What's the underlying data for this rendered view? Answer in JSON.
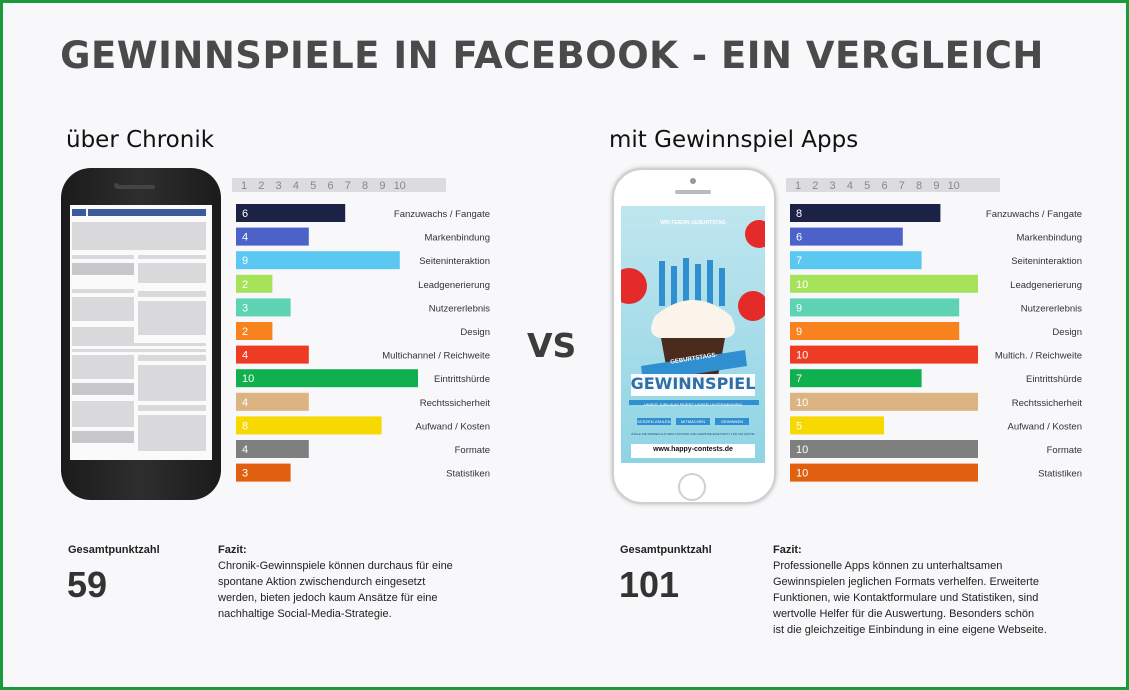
{
  "title": "GEWINNSPIELE IN FACEBOOK - EIN VERGLEICH",
  "vs": "VS",
  "colors": {
    "frame": "#1a9a3a",
    "scale_bg": "#dcdcde",
    "scale_text": "#888888",
    "category_colors": [
      "#1c2246",
      "#4c62c8",
      "#5bc8f2",
      "#a6e35a",
      "#5dd3b3",
      "#f7821e",
      "#ee3b24",
      "#10b04e",
      "#dbb482",
      "#f7d800",
      "#7f7f7f",
      "#e06010"
    ]
  },
  "scale_ticks": [
    "1",
    "2",
    "3",
    "4",
    "5",
    "6",
    "7",
    "8",
    "9",
    "10"
  ],
  "left": {
    "heading": "über Chronik",
    "total_label": "Gesamtpunktzahl",
    "total_value": "59",
    "fazit_label": "Fazit:",
    "fazit_lines": [
      "Chronik-Gewinnspiele  können durchaus für eine",
      "spontane Aktion zwischendurch eingesetzt",
      "werden,  bieten jedoch kaum Ansätze für eine",
      "nachhaltige Social-Media-Strategie."
    ]
  },
  "right": {
    "heading": "mit Gewinnspiel Apps",
    "total_label": "Gesamtpunktzahl",
    "total_value": "101",
    "fazit_label": "Fazit:",
    "fazit_lines": [
      "Professionelle  Apps können zu unterhaltsamen",
      "Gewinnspielen  jeglichen Formats verhelfen.  Erweiterte",
      "Funktionen, wie Kontaktformulare  und Statistiken, sind",
      "wertvolle Helfer für die Auswertung.  Besonders schön",
      "ist die gleichzeitige  Einbindung in eine eigene Webseite."
    ],
    "poster": {
      "top_text": "WIR FEIERN GEBURTSTAG",
      "banner": "GEBURTSTAGS-",
      "headline": "GEWINNSPIEL",
      "sub": "UNSER JUBILÄUM FEIERT UNSER UNTERNEHMEN!",
      "buttons": [
        "KERZEN ZÄHLEN",
        "MITMACHEN",
        "GEWINNEN"
      ],
      "fine": "ZÄHLE DIE KERZEN AUF DEM CUPCAKE UND GEWINNE EINE PARTY FÜR 100 GÄSTE!",
      "url": "www.happy-contests.de"
    }
  },
  "chart_data": [
    {
      "type": "bar",
      "title": "über Chronik",
      "orientation": "horizontal",
      "xlim": [
        0,
        10
      ],
      "categories": [
        "Fanzuwachs / Fangate",
        "Markenbindung",
        "Seiteninteraktion",
        "Leadgenerierung",
        "Nutzererlebnis",
        "Design",
        "Multichannel / Reichweite",
        "Eintrittshürde",
        "Rechtssicherheit",
        "Aufwand / Kosten",
        "Formate",
        "Statistiken"
      ],
      "values": [
        6,
        4,
        9,
        2,
        3,
        2,
        4,
        10,
        4,
        8,
        4,
        3
      ],
      "total": 59
    },
    {
      "type": "bar",
      "title": "mit Gewinnspiel Apps",
      "orientation": "horizontal",
      "xlim": [
        0,
        10
      ],
      "categories": [
        "Fanzuwachs / Fangate",
        "Markenbindung",
        "Seiteninteraktion",
        "Leadgenerierung",
        "Nutzererlebnis",
        "Design",
        "Multich. / Reichweite",
        "Eintrittshürde",
        "Rechtssicherheit",
        "Aufwand / Kosten",
        "Formate",
        "Statistiken"
      ],
      "values": [
        8,
        6,
        7,
        10,
        9,
        9,
        10,
        7,
        10,
        5,
        10,
        10
      ],
      "total": 101
    }
  ]
}
